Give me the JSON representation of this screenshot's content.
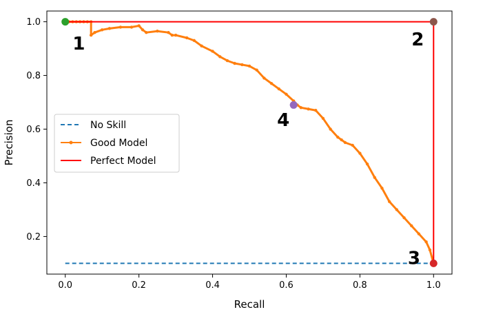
{
  "chart_data": {
    "type": "line",
    "title": "",
    "xlabel": "Recall",
    "ylabel": "Precision",
    "xlim": [
      -0.05,
      1.05
    ],
    "ylim": [
      0.06,
      1.04
    ],
    "xticks": [
      0.0,
      0.2,
      0.4,
      0.6,
      0.8,
      1.0
    ],
    "xtick_labels": [
      "0.0",
      "0.2",
      "0.4",
      "0.6",
      "0.8",
      "1.0"
    ],
    "yticks": [
      0.2,
      0.4,
      0.6,
      0.8,
      1.0
    ],
    "ytick_labels": [
      "0.2",
      "0.4",
      "0.6",
      "0.8",
      "1.0"
    ],
    "grid": false,
    "legend_position": "center-left",
    "series": [
      {
        "name": "No Skill",
        "style": "dashed",
        "color": "#1f77b4",
        "x": [
          0,
          1
        ],
        "y": [
          0.1,
          0.1
        ]
      },
      {
        "name": "Good Model",
        "style": "line-with-dots",
        "color": "#ff7f0e",
        "x": [
          0.0,
          0.01,
          0.02,
          0.03,
          0.04,
          0.05,
          0.06,
          0.07,
          0.07,
          0.08,
          0.1,
          0.12,
          0.15,
          0.18,
          0.2,
          0.21,
          0.22,
          0.25,
          0.28,
          0.29,
          0.3,
          0.33,
          0.35,
          0.37,
          0.4,
          0.42,
          0.44,
          0.46,
          0.48,
          0.5,
          0.52,
          0.54,
          0.56,
          0.58,
          0.6,
          0.62,
          0.63,
          0.64,
          0.66,
          0.68,
          0.7,
          0.72,
          0.74,
          0.75,
          0.76,
          0.78,
          0.8,
          0.82,
          0.84,
          0.86,
          0.88,
          0.9,
          0.92,
          0.94,
          0.96,
          0.98,
          0.99,
          1.0
        ],
        "y": [
          1.0,
          1.0,
          1.0,
          1.0,
          1.0,
          1.0,
          1.0,
          1.0,
          0.95,
          0.96,
          0.97,
          0.975,
          0.98,
          0.98,
          0.985,
          0.97,
          0.96,
          0.965,
          0.96,
          0.95,
          0.95,
          0.94,
          0.93,
          0.91,
          0.89,
          0.87,
          0.855,
          0.845,
          0.84,
          0.835,
          0.82,
          0.79,
          0.77,
          0.75,
          0.73,
          0.705,
          0.69,
          0.68,
          0.675,
          0.67,
          0.64,
          0.6,
          0.57,
          0.56,
          0.55,
          0.54,
          0.51,
          0.47,
          0.42,
          0.38,
          0.33,
          0.3,
          0.27,
          0.24,
          0.21,
          0.18,
          0.15,
          0.1
        ]
      },
      {
        "name": "Perfect Model",
        "style": "solid",
        "color": "#ff0000",
        "x": [
          0,
          1,
          1
        ],
        "y": [
          1,
          1,
          0.1
        ]
      }
    ],
    "markers": [
      {
        "id": "marker-1",
        "x": 0.0,
        "y": 1.0,
        "color": "#2ca02c"
      },
      {
        "id": "marker-2",
        "x": 1.0,
        "y": 1.0,
        "color": "#8c564b"
      },
      {
        "id": "marker-3",
        "x": 1.0,
        "y": 0.1,
        "color": "#d62728"
      },
      {
        "id": "marker-4",
        "x": 0.62,
        "y": 0.69,
        "color": "#9467bd"
      }
    ],
    "annotations": [
      {
        "label": "1",
        "x": 0.02,
        "y": 0.92
      },
      {
        "label": "2",
        "x": 0.94,
        "y": 0.935
      },
      {
        "label": "3",
        "x": 0.93,
        "y": 0.12
      },
      {
        "label": "4",
        "x": 0.575,
        "y": 0.635
      }
    ]
  }
}
